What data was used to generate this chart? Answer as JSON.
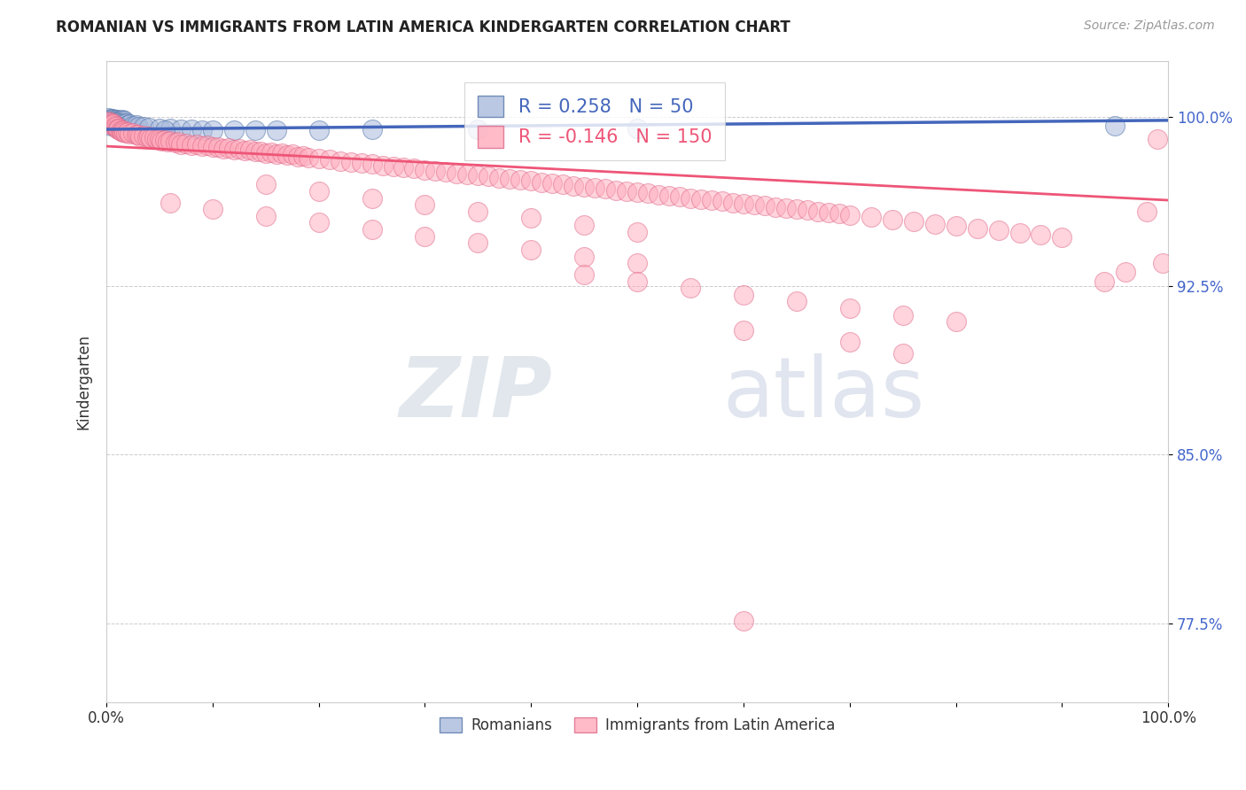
{
  "title": "ROMANIAN VS IMMIGRANTS FROM LATIN AMERICA KINDERGARTEN CORRELATION CHART",
  "source": "Source: ZipAtlas.com",
  "ylabel": "Kindergarten",
  "xmin": 0.0,
  "xmax": 1.0,
  "ymin": 0.74,
  "ymax": 1.025,
  "yticks": [
    0.775,
    0.85,
    0.925,
    1.0
  ],
  "ytick_labels": [
    "77.5%",
    "85.0%",
    "92.5%",
    "100.0%"
  ],
  "xticks": [
    0.0,
    0.1,
    0.2,
    0.3,
    0.4,
    0.5,
    0.6,
    0.7,
    0.8,
    0.9,
    1.0
  ],
  "xtick_labels": [
    "0.0%",
    "",
    "",
    "",
    "",
    "",
    "",
    "",
    "",
    "",
    "100.0%"
  ],
  "grid_color": "#cccccc",
  "background_color": "#ffffff",
  "blue_fill": "#aabbdd",
  "blue_edge": "#5577aa",
  "pink_fill": "#ffaabb",
  "pink_edge": "#dd6688",
  "blue_line_color": "#4466bb",
  "pink_line_color": "#ee5577",
  "legend_blue_R": "0.258",
  "legend_blue_N": "50",
  "legend_pink_R": "-0.146",
  "legend_pink_N": "150",
  "legend_label_blue": "Romanians",
  "legend_label_pink": "Immigrants from Latin America",
  "watermark_zip": "ZIP",
  "watermark_atlas": "atlas",
  "blue_trend_x": [
    0.0,
    1.0
  ],
  "blue_trend_y": [
    0.9945,
    0.9985
  ],
  "pink_trend_x": [
    0.0,
    1.0
  ],
  "pink_trend_y": [
    0.987,
    0.963
  ],
  "blue_points": [
    [
      0.002,
      0.9995
    ],
    [
      0.003,
      0.999
    ],
    [
      0.004,
      0.9992
    ],
    [
      0.005,
      0.9988
    ],
    [
      0.006,
      0.9993
    ],
    [
      0.007,
      0.9987
    ],
    [
      0.008,
      0.9985
    ],
    [
      0.009,
      0.999
    ],
    [
      0.01,
      0.9988
    ],
    [
      0.011,
      0.9985
    ],
    [
      0.012,
      0.9982
    ],
    [
      0.013,
      0.9986
    ],
    [
      0.014,
      0.9984
    ],
    [
      0.015,
      0.9988
    ],
    [
      0.016,
      0.998
    ],
    [
      0.017,
      0.9983
    ],
    [
      0.003,
      0.9975
    ],
    [
      0.005,
      0.9978
    ],
    [
      0.007,
      0.9972
    ],
    [
      0.009,
      0.9976
    ],
    [
      0.011,
      0.997
    ],
    [
      0.013,
      0.9974
    ],
    [
      0.015,
      0.9968
    ],
    [
      0.018,
      0.9971
    ],
    [
      0.02,
      0.9965
    ],
    [
      0.022,
      0.9968
    ],
    [
      0.025,
      0.9962
    ],
    [
      0.028,
      0.9965
    ],
    [
      0.004,
      0.996
    ],
    [
      0.006,
      0.9963
    ],
    [
      0.008,
      0.9958
    ],
    [
      0.01,
      0.9961
    ],
    [
      0.03,
      0.9958
    ],
    [
      0.035,
      0.9955
    ],
    [
      0.04,
      0.9952
    ],
    [
      0.05,
      0.995
    ],
    [
      0.06,
      0.9948
    ],
    [
      0.07,
      0.9946
    ],
    [
      0.08,
      0.9944
    ],
    [
      0.09,
      0.9942
    ],
    [
      0.1,
      0.994
    ],
    [
      0.12,
      0.994
    ],
    [
      0.14,
      0.9941
    ],
    [
      0.16,
      0.9942
    ],
    [
      0.055,
      0.994
    ],
    [
      0.2,
      0.9943
    ],
    [
      0.25,
      0.9944
    ],
    [
      0.35,
      0.9945
    ],
    [
      0.5,
      0.995
    ],
    [
      0.95,
      0.996
    ]
  ],
  "pink_points": [
    [
      0.002,
      0.998
    ],
    [
      0.003,
      0.9975
    ],
    [
      0.004,
      0.997
    ],
    [
      0.005,
      0.9965
    ],
    [
      0.006,
      0.9973
    ],
    [
      0.007,
      0.9968
    ],
    [
      0.008,
      0.996
    ],
    [
      0.009,
      0.9955
    ],
    [
      0.01,
      0.995
    ],
    [
      0.011,
      0.9945
    ],
    [
      0.012,
      0.995
    ],
    [
      0.013,
      0.9943
    ],
    [
      0.014,
      0.9938
    ],
    [
      0.015,
      0.9935
    ],
    [
      0.016,
      0.994
    ],
    [
      0.017,
      0.9933
    ],
    [
      0.018,
      0.9928
    ],
    [
      0.02,
      0.9933
    ],
    [
      0.022,
      0.9925
    ],
    [
      0.025,
      0.9928
    ],
    [
      0.028,
      0.992
    ],
    [
      0.03,
      0.9923
    ],
    [
      0.032,
      0.9915
    ],
    [
      0.035,
      0.9918
    ],
    [
      0.038,
      0.991
    ],
    [
      0.04,
      0.9913
    ],
    [
      0.042,
      0.9905
    ],
    [
      0.045,
      0.9908
    ],
    [
      0.048,
      0.99
    ],
    [
      0.05,
      0.9903
    ],
    [
      0.052,
      0.9895
    ],
    [
      0.055,
      0.9898
    ],
    [
      0.058,
      0.989
    ],
    [
      0.06,
      0.9893
    ],
    [
      0.065,
      0.9885
    ],
    [
      0.068,
      0.9888
    ],
    [
      0.07,
      0.988
    ],
    [
      0.075,
      0.9883
    ],
    [
      0.08,
      0.9875
    ],
    [
      0.085,
      0.9878
    ],
    [
      0.09,
      0.987
    ],
    [
      0.095,
      0.9873
    ],
    [
      0.1,
      0.9865
    ],
    [
      0.105,
      0.9868
    ],
    [
      0.11,
      0.986
    ],
    [
      0.115,
      0.9863
    ],
    [
      0.12,
      0.9855
    ],
    [
      0.125,
      0.9858
    ],
    [
      0.13,
      0.985
    ],
    [
      0.135,
      0.9853
    ],
    [
      0.14,
      0.9845
    ],
    [
      0.145,
      0.9848
    ],
    [
      0.15,
      0.984
    ],
    [
      0.155,
      0.9843
    ],
    [
      0.16,
      0.9835
    ],
    [
      0.165,
      0.9838
    ],
    [
      0.17,
      0.983
    ],
    [
      0.175,
      0.9833
    ],
    [
      0.18,
      0.9825
    ],
    [
      0.185,
      0.9828
    ],
    [
      0.19,
      0.982
    ],
    [
      0.2,
      0.9815
    ],
    [
      0.21,
      0.981
    ],
    [
      0.22,
      0.9805
    ],
    [
      0.23,
      0.98
    ],
    [
      0.24,
      0.9795
    ],
    [
      0.25,
      0.979
    ],
    [
      0.26,
      0.9785
    ],
    [
      0.27,
      0.978
    ],
    [
      0.28,
      0.9775
    ],
    [
      0.29,
      0.977
    ],
    [
      0.3,
      0.9765
    ],
    [
      0.31,
      0.976
    ],
    [
      0.32,
      0.9755
    ],
    [
      0.33,
      0.975
    ],
    [
      0.34,
      0.9745
    ],
    [
      0.35,
      0.974
    ],
    [
      0.36,
      0.9735
    ],
    [
      0.37,
      0.973
    ],
    [
      0.38,
      0.9725
    ],
    [
      0.39,
      0.972
    ],
    [
      0.4,
      0.9715
    ],
    [
      0.41,
      0.971
    ],
    [
      0.42,
      0.9705
    ],
    [
      0.43,
      0.97
    ],
    [
      0.44,
      0.9695
    ],
    [
      0.45,
      0.969
    ],
    [
      0.46,
      0.9685
    ],
    [
      0.47,
      0.968
    ],
    [
      0.48,
      0.9675
    ],
    [
      0.49,
      0.967
    ],
    [
      0.5,
      0.9665
    ],
    [
      0.51,
      0.966
    ],
    [
      0.52,
      0.9655
    ],
    [
      0.53,
      0.965
    ],
    [
      0.54,
      0.9645
    ],
    [
      0.55,
      0.964
    ],
    [
      0.56,
      0.9635
    ],
    [
      0.57,
      0.963
    ],
    [
      0.58,
      0.9625
    ],
    [
      0.59,
      0.962
    ],
    [
      0.6,
      0.9615
    ],
    [
      0.61,
      0.961
    ],
    [
      0.62,
      0.9605
    ],
    [
      0.63,
      0.96
    ],
    [
      0.64,
      0.9595
    ],
    [
      0.65,
      0.959
    ],
    [
      0.66,
      0.9585
    ],
    [
      0.67,
      0.958
    ],
    [
      0.68,
      0.9575
    ],
    [
      0.69,
      0.957
    ],
    [
      0.7,
      0.9565
    ],
    [
      0.72,
      0.9555
    ],
    [
      0.74,
      0.9545
    ],
    [
      0.76,
      0.9535
    ],
    [
      0.78,
      0.9525
    ],
    [
      0.8,
      0.9515
    ],
    [
      0.82,
      0.9505
    ],
    [
      0.84,
      0.9495
    ],
    [
      0.86,
      0.9485
    ],
    [
      0.88,
      0.9475
    ],
    [
      0.9,
      0.9465
    ],
    [
      0.15,
      0.97
    ],
    [
      0.2,
      0.967
    ],
    [
      0.25,
      0.964
    ],
    [
      0.3,
      0.961
    ],
    [
      0.35,
      0.958
    ],
    [
      0.4,
      0.955
    ],
    [
      0.45,
      0.952
    ],
    [
      0.5,
      0.949
    ],
    [
      0.06,
      0.962
    ],
    [
      0.1,
      0.959
    ],
    [
      0.15,
      0.956
    ],
    [
      0.2,
      0.953
    ],
    [
      0.25,
      0.95
    ],
    [
      0.3,
      0.947
    ],
    [
      0.35,
      0.944
    ],
    [
      0.4,
      0.941
    ],
    [
      0.45,
      0.938
    ],
    [
      0.5,
      0.935
    ],
    [
      0.45,
      0.93
    ],
    [
      0.5,
      0.927
    ],
    [
      0.55,
      0.924
    ],
    [
      0.6,
      0.921
    ],
    [
      0.65,
      0.918
    ],
    [
      0.7,
      0.915
    ],
    [
      0.75,
      0.912
    ],
    [
      0.8,
      0.909
    ],
    [
      0.6,
      0.905
    ],
    [
      0.7,
      0.9
    ],
    [
      0.75,
      0.895
    ],
    [
      0.94,
      0.927
    ],
    [
      0.96,
      0.931
    ],
    [
      0.98,
      0.958
    ],
    [
      0.99,
      0.99
    ],
    [
      0.995,
      0.935
    ],
    [
      0.6,
      0.776
    ]
  ]
}
